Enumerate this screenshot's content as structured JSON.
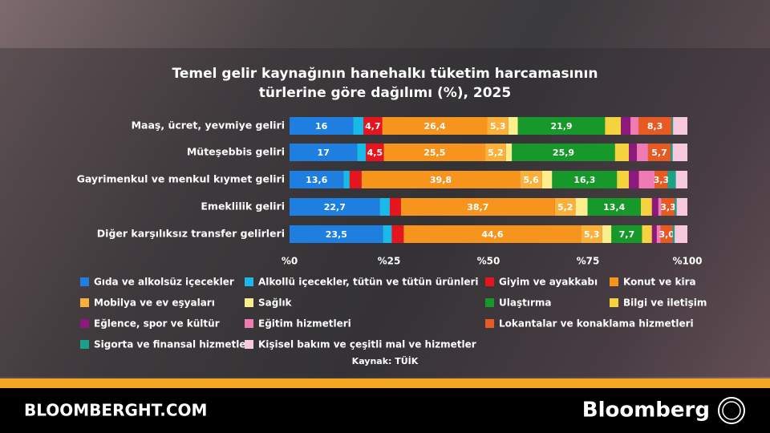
{
  "chart_data": {
    "type": "bar",
    "orientation": "horizontal",
    "stacked": true,
    "title": "Temel gelir kaynağının hanehalkı tüketim harcamasının türlerine göre dağılımı (%), 2025",
    "categories": [
      "Maaş, ücret, yevmiye geliri",
      "Müteşebbis geliri",
      "Gayrimenkul ve menkul kıymet geliri",
      "Emeklilik geliri",
      "Diğer karşılıksız transfer gelirleri"
    ],
    "xlim": [
      0,
      100
    ],
    "xticks": [
      {
        "value": 0,
        "label": "%0"
      },
      {
        "value": 25,
        "label": "%25"
      },
      {
        "value": 50,
        "label": "%50"
      },
      {
        "value": 75,
        "label": "%75"
      },
      {
        "value": 100,
        "label": "%100"
      }
    ],
    "series": [
      {
        "name": "Gıda ve alkolsüz içecekler",
        "color": "#1f7fe0",
        "values": [
          16,
          17,
          13.6,
          22.7,
          23.5
        ],
        "value_labels": [
          "16",
          "17",
          "13,6",
          "22,7",
          "23,5"
        ]
      },
      {
        "name": "Alkollü içecekler, tütün ve tütün ürünleri",
        "color": "#19b9e8",
        "values": [
          2.6,
          2.2,
          1.5,
          2.5,
          2.2
        ],
        "value_labels": [
          null,
          null,
          null,
          null,
          null
        ]
      },
      {
        "name": "Giyim ve ayakkabı",
        "color": "#e5141f",
        "values": [
          4.7,
          4.5,
          3.0,
          2.8,
          3.0
        ],
        "value_labels": [
          "4,7",
          "4,5",
          null,
          null,
          null
        ]
      },
      {
        "name": "Konut ve kira",
        "color": "#f7941d",
        "values": [
          26.4,
          25.5,
          39.8,
          38.7,
          44.6
        ],
        "value_labels": [
          "26,4",
          "25,5",
          "39,8",
          "38,7",
          "44,6"
        ]
      },
      {
        "name": "Mobilya ve ev eşyaları",
        "color": "#fbb03b",
        "values": [
          5.3,
          5.2,
          5.6,
          5.2,
          5.3
        ],
        "value_labels": [
          "5,3",
          "5,2",
          "5,6",
          "5,2",
          "5,3"
        ]
      },
      {
        "name": "Sağlık",
        "color": "#fbee8c",
        "values": [
          2.4,
          1.5,
          2.5,
          3.0,
          2.3
        ],
        "value_labels": [
          null,
          null,
          null,
          null,
          null
        ]
      },
      {
        "name": "Ulaştırma",
        "color": "#17982b",
        "values": [
          21.9,
          25.9,
          16.3,
          13.4,
          7.7
        ],
        "value_labels": [
          "21,9",
          "25,9",
          "16,3",
          "13,4",
          "7,7"
        ]
      },
      {
        "name": "Bilgi ve iletişim",
        "color": "#f4d33f",
        "values": [
          4.0,
          3.5,
          3.0,
          2.8,
          2.5
        ],
        "value_labels": [
          null,
          null,
          null,
          null,
          null
        ]
      },
      {
        "name": "Eğlence, spor ve kültür",
        "color": "#8b1a7c",
        "values": [
          2.4,
          2.0,
          2.5,
          1.6,
          1.2
        ],
        "value_labels": [
          null,
          null,
          null,
          null,
          null
        ]
      },
      {
        "name": "Eğitim hizmetleri",
        "color": "#f07ab2",
        "values": [
          2.0,
          2.8,
          4.0,
          0.8,
          1.0
        ],
        "value_labels": [
          null,
          null,
          null,
          null,
          null
        ]
      },
      {
        "name": "Lokantalar ve konaklama hizmetleri",
        "color": "#e85a24",
        "values": [
          8.3,
          5.7,
          3.3,
          3.3,
          3.0
        ],
        "value_labels": [
          "8,3",
          "5,7",
          "3,3",
          "3,3",
          "3,0"
        ]
      },
      {
        "name": "Sigorta ve finansal hizmetler",
        "color": "#16a38a",
        "values": [
          0.4,
          0.5,
          2.0,
          0.5,
          0.5
        ],
        "value_labels": [
          null,
          null,
          null,
          null,
          null
        ]
      },
      {
        "name": "Kişisel bakım ve çeşitli mal ve hizmetler",
        "color": "#f8c8dd",
        "values": [
          3.6,
          3.7,
          2.9,
          2.7,
          3.2
        ],
        "value_labels": [
          null,
          null,
          null,
          null,
          null
        ]
      }
    ],
    "source": "Kaynak: TÜİK"
  },
  "footer": {
    "site": "BLOOMBERGHT.COM",
    "brand": "Bloomberg"
  }
}
